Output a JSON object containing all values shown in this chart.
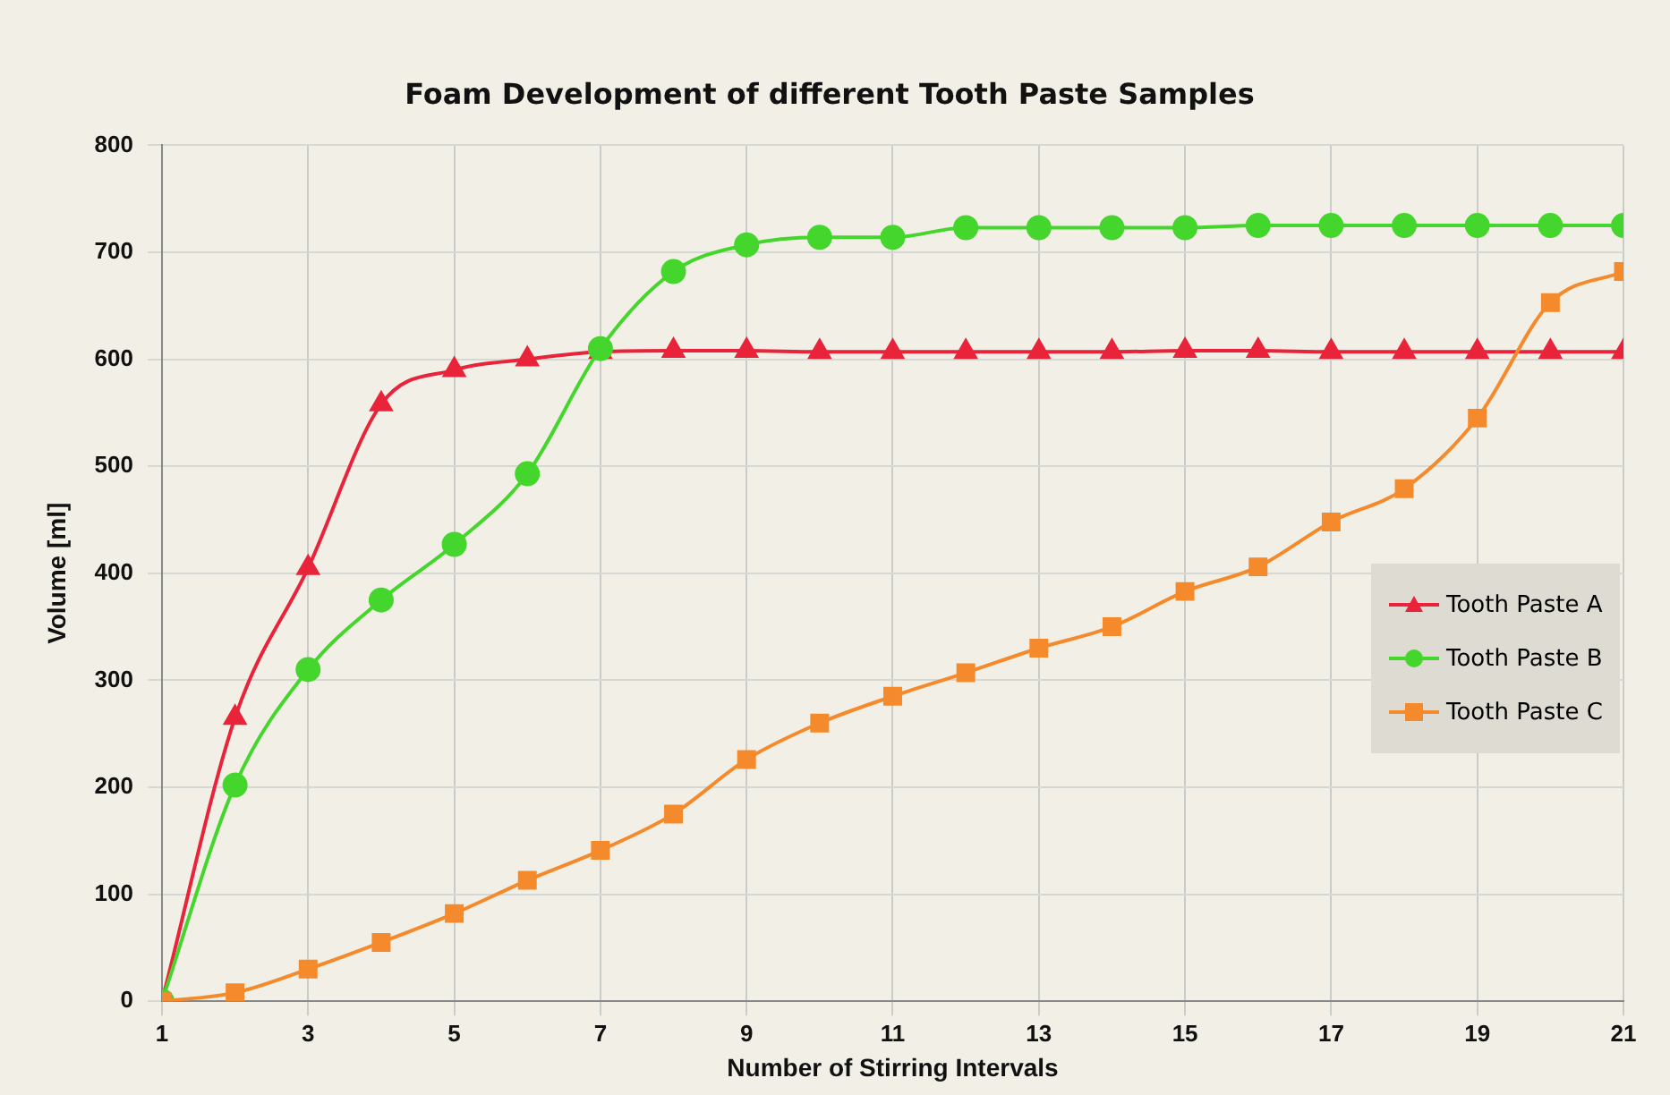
{
  "chart_data": {
    "type": "line",
    "title": "Foam Development of different Tooth Paste Samples",
    "xlabel": "Number of Stirring Intervals",
    "ylabel": "Volume [ml]",
    "x": [
      1,
      2,
      3,
      4,
      5,
      6,
      7,
      8,
      9,
      10,
      11,
      12,
      13,
      14,
      15,
      16,
      17,
      18,
      19,
      20,
      21
    ],
    "xlim": [
      1,
      21
    ],
    "xticks": [
      1,
      3,
      5,
      7,
      9,
      11,
      13,
      15,
      17,
      19,
      21
    ],
    "ylim": [
      0,
      800
    ],
    "yticks": [
      0,
      100,
      200,
      300,
      400,
      500,
      600,
      700,
      800
    ],
    "grid": true,
    "legend": "right",
    "series": [
      {
        "name": "Tooth Paste A",
        "color": "#e8233a",
        "marker": "triangle",
        "values": [
          0,
          265,
          405,
          558,
          590,
          600,
          607,
          608,
          608,
          607,
          607,
          607,
          607,
          607,
          608,
          608,
          607,
          607,
          607,
          607,
          607
        ]
      },
      {
        "name": "Tooth Paste B",
        "color": "#44d62c",
        "marker": "circle",
        "values": [
          0,
          202,
          310,
          375,
          427,
          493,
          610,
          682,
          707,
          714,
          714,
          723,
          723,
          723,
          723,
          725,
          725,
          725,
          725,
          725,
          725
        ]
      },
      {
        "name": "Tooth Paste C",
        "color": "#f58a2c",
        "marker": "square",
        "values": [
          0,
          8,
          30,
          55,
          82,
          113,
          141,
          175,
          226,
          260,
          285,
          307,
          330,
          350,
          383,
          406,
          448,
          479,
          545,
          653,
          682
        ]
      }
    ]
  }
}
